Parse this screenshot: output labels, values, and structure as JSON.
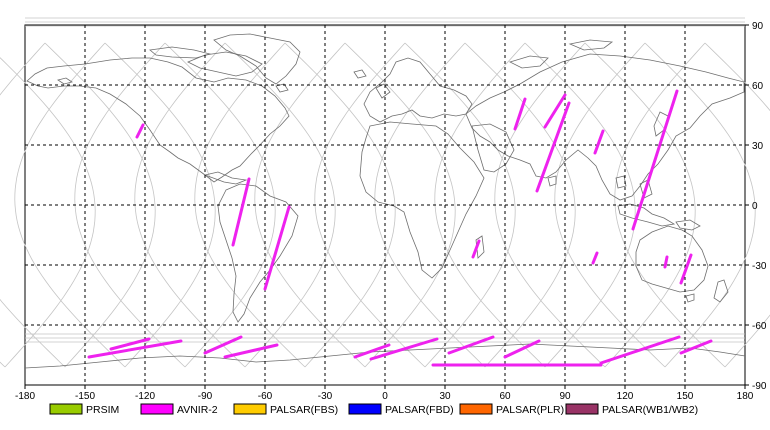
{
  "axes": {
    "x_ticks": [
      "-180",
      "-150",
      "-120",
      "-90",
      "-60",
      "-30",
      "0",
      "30",
      "60",
      "90",
      "120",
      "150",
      "180"
    ],
    "y_ticks": [
      "90",
      "60",
      "30",
      "0",
      "-30",
      "-60",
      "-90"
    ],
    "xlim": [
      -180,
      180
    ],
    "ylim": [
      -90,
      90
    ],
    "grid": "dashed"
  },
  "legend": {
    "items": [
      {
        "label": "PRSIM",
        "color": "#99cc00"
      },
      {
        "label": "AVNIR-2",
        "color": "#ff00ff"
      },
      {
        "label": "PALSAR(FBS)",
        "color": "#ffcc00"
      },
      {
        "label": "PALSAR(FBD)",
        "color": "#0000ff"
      },
      {
        "label": "PALSAR(PLR)",
        "color": "#ff6600"
      },
      {
        "label": "PALSAR(WB1/WB2)",
        "color": "#993366"
      }
    ]
  },
  "swaths": {
    "color": "#ee22ee",
    "segments": [
      [
        [
          -137,
          -72
        ],
        [
          -118,
          -67
        ]
      ],
      [
        [
          -148,
          -76
        ],
        [
          -102,
          -68
        ]
      ],
      [
        [
          -90,
          -74
        ],
        [
          -72,
          -66
        ]
      ],
      [
        [
          -80,
          -76
        ],
        [
          -54,
          -70
        ]
      ],
      [
        [
          -124,
          34
        ],
        [
          -121,
          40
        ]
      ],
      [
        [
          -76,
          -20
        ],
        [
          -68,
          13
        ]
      ],
      [
        [
          -60,
          -42
        ],
        [
          -48,
          -1
        ]
      ],
      [
        [
          -15,
          -76
        ],
        [
          2,
          -70
        ]
      ],
      [
        [
          -7,
          -77
        ],
        [
          26,
          -67
        ]
      ],
      [
        [
          24,
          -80
        ],
        [
          108,
          -80
        ]
      ],
      [
        [
          32,
          -74
        ],
        [
          54,
          -66
        ]
      ],
      [
        [
          44,
          -26
        ],
        [
          47,
          -18
        ]
      ],
      [
        [
          60,
          -76
        ],
        [
          77,
          -68
        ]
      ],
      [
        [
          65,
          38
        ],
        [
          70,
          53
        ]
      ],
      [
        [
          80,
          39
        ],
        [
          90,
          55
        ]
      ],
      [
        [
          76,
          7
        ],
        [
          92,
          51
        ]
      ],
      [
        [
          104,
          -29
        ],
        [
          106,
          -24
        ]
      ],
      [
        [
          105,
          26
        ],
        [
          109,
          37
        ]
      ],
      [
        [
          108,
          -79
        ],
        [
          147,
          -66
        ]
      ],
      [
        [
          124,
          -12
        ],
        [
          146,
          57
        ]
      ],
      [
        [
          140,
          -31
        ],
        [
          141,
          -26
        ]
      ],
      [
        [
          148,
          -39
        ],
        [
          153,
          -25
        ]
      ],
      [
        [
          148,
          -74
        ],
        [
          163,
          -68
        ]
      ]
    ]
  }
}
